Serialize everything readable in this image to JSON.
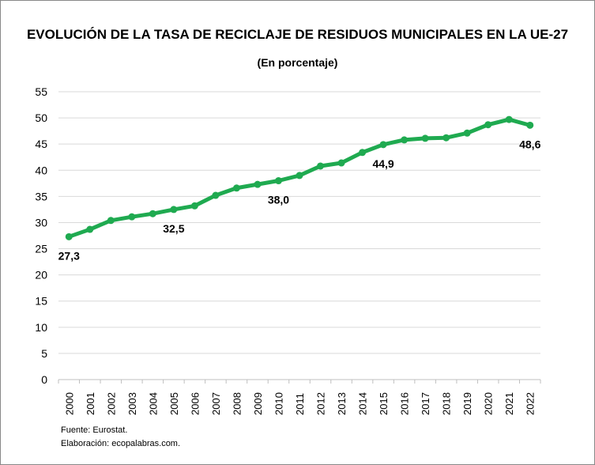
{
  "chart_data": {
    "type": "line",
    "title": "EVOLUCIÓN DE LA TASA DE RECICLAJE DE RESIDUOS MUNICIPALES EN LA UE-27",
    "subtitle": "(En porcentaje)",
    "categories": [
      "2000",
      "2001",
      "2002",
      "2003",
      "2004",
      "2005",
      "2006",
      "2007",
      "2008",
      "2009",
      "2010",
      "2011",
      "2012",
      "2013",
      "2014",
      "2015",
      "2016",
      "2017",
      "2018",
      "2019",
      "2020",
      "2021",
      "2022"
    ],
    "values": [
      27.3,
      28.7,
      30.4,
      31.1,
      31.7,
      32.5,
      33.2,
      35.2,
      36.6,
      37.3,
      38.0,
      39.0,
      40.8,
      41.4,
      43.4,
      44.9,
      45.8,
      46.1,
      46.2,
      47.1,
      48.7,
      49.7,
      48.6
    ],
    "data_labels": [
      {
        "category": "2000",
        "text": "27,3"
      },
      {
        "category": "2005",
        "text": "32,5"
      },
      {
        "category": "2010",
        "text": "38,0"
      },
      {
        "category": "2015",
        "text": "44,9"
      },
      {
        "category": "2022",
        "text": "48,6"
      }
    ],
    "ylim": [
      0,
      55
    ],
    "yticks": [
      "0",
      "5",
      "10",
      "15",
      "20",
      "25",
      "30",
      "35",
      "40",
      "45",
      "50",
      "55"
    ],
    "grid": true,
    "legend": "none",
    "line_color": "#1faa50"
  },
  "footer": {
    "source": "Fuente: Eurostat.",
    "credit": "Elaboración: ecopalabras.com."
  }
}
